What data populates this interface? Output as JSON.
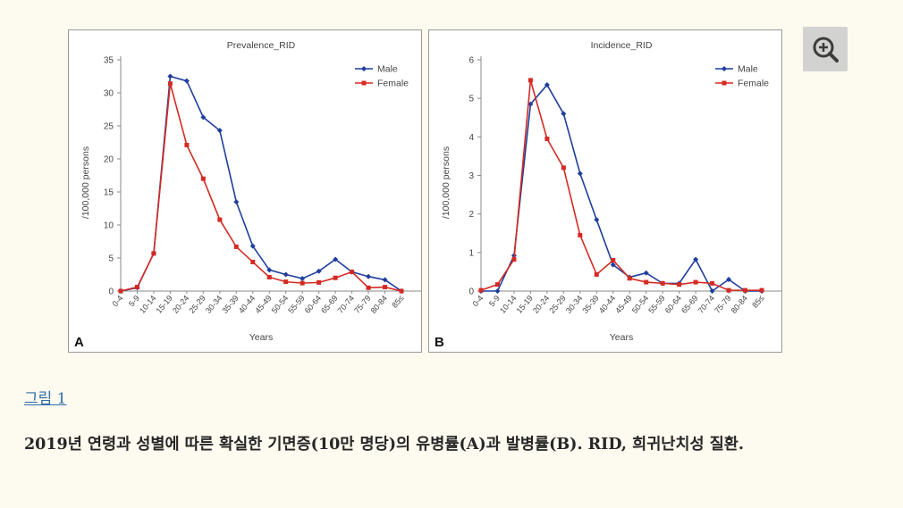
{
  "chart_data": [
    {
      "type": "line",
      "panel_label": "A",
      "title": "Prevalence_RID",
      "xlabel": "Years",
      "ylabel": "/100,000 persons",
      "ylim": [
        0,
        35
      ],
      "yticks": [
        0,
        5,
        10,
        15,
        20,
        25,
        30,
        35
      ],
      "grid": false,
      "legend_placement": "top-right",
      "categories": [
        "0-4",
        "5-9",
        "10-14",
        "15-19",
        "20-24",
        "25-29",
        "30-34",
        "35-39",
        "40-44",
        "45-49",
        "50-54",
        "55-59",
        "60-64",
        "65-69",
        "70-74",
        "75-79",
        "80-84",
        "85≤"
      ],
      "series": [
        {
          "name": "Male",
          "color": "#1f3e9e",
          "marker": "diamond",
          "values": [
            0,
            0.5,
            5.7,
            32.5,
            31.8,
            26.3,
            24.3,
            13.5,
            6.8,
            3.2,
            2.5,
            1.9,
            3.0,
            4.8,
            2.9,
            2.2,
            1.7,
            0
          ]
        },
        {
          "name": "Female",
          "color": "#d42a22",
          "marker": "square",
          "values": [
            0,
            0.6,
            5.7,
            31.4,
            22.1,
            17.0,
            10.8,
            6.7,
            4.4,
            2.1,
            1.4,
            1.2,
            1.3,
            2.0,
            2.9,
            0.5,
            0.6,
            0
          ]
        }
      ]
    },
    {
      "type": "line",
      "panel_label": "B",
      "title": "Incidence_RID",
      "xlabel": "Years",
      "ylabel": "/100,000 persons",
      "ylim": [
        0,
        6
      ],
      "yticks": [
        0,
        1,
        2,
        3,
        4,
        5,
        6
      ],
      "grid": false,
      "legend_placement": "top-right",
      "categories": [
        "0-4",
        "5-9",
        "10-14",
        "15-19",
        "20-24",
        "25-29",
        "30-34",
        "35-39",
        "40-44",
        "45-49",
        "50-54",
        "55-59",
        "60-64",
        "65-69",
        "70-74",
        "75-79",
        "80-84",
        "85≤"
      ],
      "series": [
        {
          "name": "Male",
          "color": "#1f3e9e",
          "marker": "diamond",
          "values": [
            0,
            0,
            0.92,
            4.85,
            5.35,
            4.6,
            3.05,
            1.85,
            0.68,
            0.36,
            0.47,
            0.2,
            0.2,
            0.82,
            0,
            0.3,
            0,
            0
          ]
        },
        {
          "name": "Female",
          "color": "#d42a22",
          "marker": "square",
          "values": [
            0.02,
            0.17,
            0.82,
            5.47,
            3.95,
            3.2,
            1.45,
            0.43,
            0.8,
            0.33,
            0.23,
            0.2,
            0.17,
            0.23,
            0.2,
            0.02,
            0.02,
            0.02
          ]
        }
      ]
    }
  ],
  "caption": {
    "figure_label": "그림 1",
    "text": "2019년 연령과 성별에 따른 확실한 기면증(10만 명당)의 유병률(A)과 발병률(B). RID, 희귀난치성 질환."
  },
  "icons": {
    "zoom": "zoom-in-icon"
  }
}
